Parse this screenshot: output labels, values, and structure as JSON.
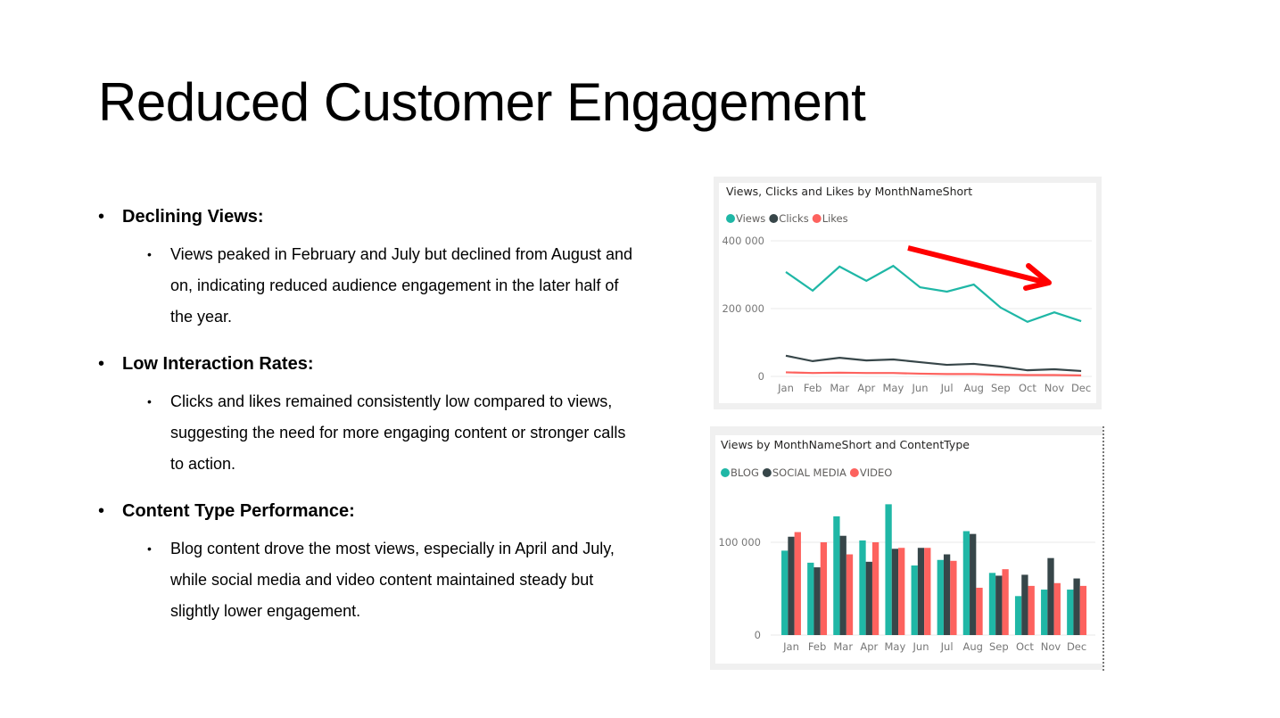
{
  "slide": {
    "title": "Reduced Customer Engagement",
    "bullets": [
      {
        "heading": "Declining Views:",
        "text": "Views peaked in February and July but declined from August and on, indicating reduced audience engagement in the later half of the year."
      },
      {
        "heading": "Low Interaction Rates:",
        "text": "Clicks and likes remained consistently low compared to views, suggesting the need for more engaging content or stronger calls to action."
      },
      {
        "heading": "Content Type Performance:",
        "text": "Blog content drove the most views, especially in April and July, while social media and video content maintained steady but slightly lower engagement."
      }
    ],
    "bullet_glyph": "•"
  },
  "colors": {
    "teal": "#1fb7a6",
    "dark": "#374649",
    "red": "#fd625e",
    "arrow": "#ff0000"
  },
  "chart_data": [
    {
      "type": "line",
      "title": "Views, Clicks and Likes by MonthNameShort",
      "categories": [
        "Jan",
        "Feb",
        "Mar",
        "Apr",
        "May",
        "Jun",
        "Jul",
        "Aug",
        "Sep",
        "Oct",
        "Nov",
        "Dec"
      ],
      "series": [
        {
          "name": "Views",
          "color": "#1fb7a6",
          "values": [
            308000,
            253000,
            324000,
            282000,
            326000,
            263000,
            250000,
            271000,
            203000,
            161000,
            189000,
            163000
          ]
        },
        {
          "name": "Clicks",
          "color": "#374649",
          "values": [
            61000,
            45000,
            55000,
            47000,
            50000,
            42000,
            34000,
            37000,
            29000,
            18000,
            21000,
            16000
          ]
        },
        {
          "name": "Likes",
          "color": "#fd625e",
          "values": [
            12000,
            10000,
            11000,
            10000,
            10000,
            8000,
            7000,
            7000,
            5000,
            4000,
            4000,
            3000
          ]
        }
      ],
      "yticks": [
        {
          "value": 0,
          "label": "0"
        },
        {
          "value": 200000,
          "label": "200 000"
        },
        {
          "value": 400000,
          "label": "400 000"
        }
      ],
      "ylim": [
        0,
        400000
      ],
      "legend": "top-left",
      "annotation": "red downward trend arrow from Jun to Nov"
    },
    {
      "type": "bar",
      "title": "Views by MonthNameShort and ContentType",
      "categories": [
        "Jan",
        "Feb",
        "Mar",
        "Apr",
        "May",
        "Jun",
        "Jul",
        "Aug",
        "Sep",
        "Oct",
        "Nov",
        "Dec"
      ],
      "series": [
        {
          "name": "BLOG",
          "color": "#1fb7a6",
          "values": [
            91000,
            78000,
            128000,
            102000,
            141000,
            75000,
            81000,
            112000,
            67000,
            42000,
            49000,
            49000
          ]
        },
        {
          "name": "SOCIAL MEDIA",
          "color": "#374649",
          "values": [
            106000,
            73000,
            107000,
            79000,
            93000,
            94000,
            87000,
            109000,
            64000,
            65000,
            83000,
            61000
          ]
        },
        {
          "name": "VIDEO",
          "color": "#fd625e",
          "values": [
            111000,
            100000,
            87000,
            100000,
            94000,
            94000,
            80000,
            51000,
            71000,
            53000,
            56000,
            53000
          ]
        }
      ],
      "yticks": [
        {
          "value": 0,
          "label": "0"
        },
        {
          "value": 100000,
          "label": "100 000"
        }
      ],
      "ylim": [
        0,
        150000
      ],
      "legend": "top-left"
    }
  ]
}
